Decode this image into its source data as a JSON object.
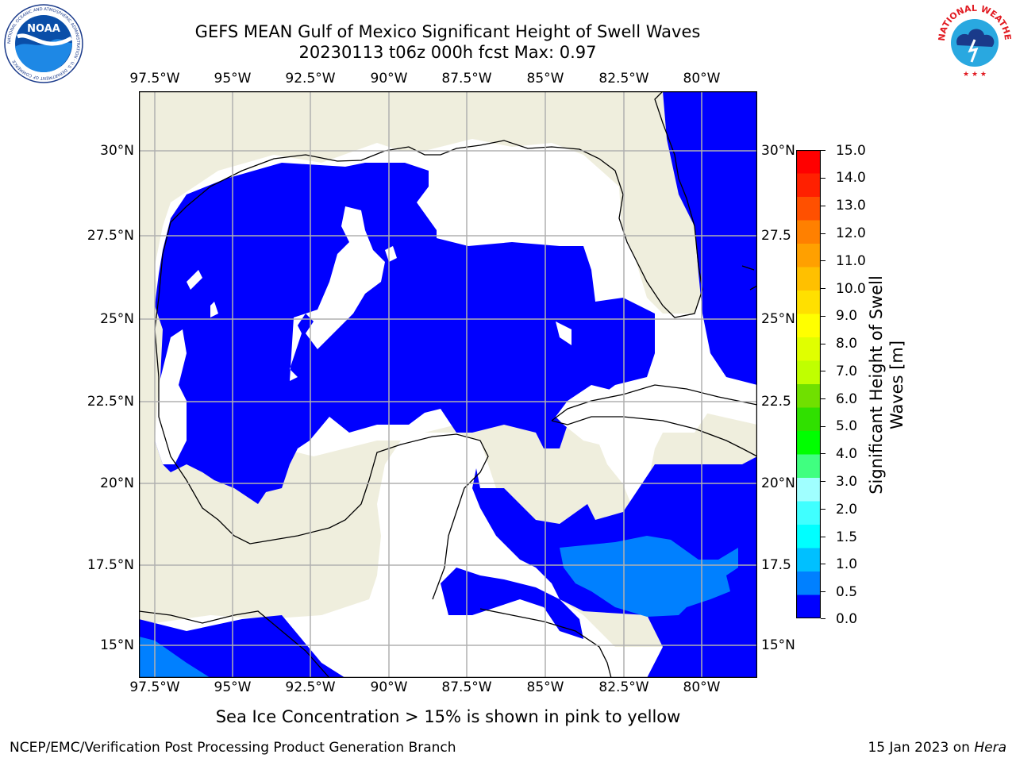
{
  "title": {
    "line1": "GEFS MEAN Gulf of Mexico Significant Height of Swell Waves",
    "line2": "20230113 t06z 000h fcst   Max: 0.97"
  },
  "map": {
    "lon_ticks_top": [
      "97.5°W",
      "95°W",
      "92.5°W",
      "90°W",
      "87.5°W",
      "85°W",
      "82.5°W",
      "80°W"
    ],
    "lon_ticks_bottom": [
      "97.5°W",
      "95°W",
      "92.5°W",
      "90°W",
      "87.5°W",
      "85°W",
      "82.5°W",
      "80°W"
    ],
    "lat_ticks_left": [
      "30°N",
      "27.5°N",
      "25°N",
      "22.5°N",
      "20°N",
      "17.5°N",
      "15°N"
    ],
    "lat_ticks_right": [
      "30°N",
      "27.5",
      "25°N",
      "22.5",
      "20°N",
      "17.5",
      "15°N"
    ],
    "colors": {
      "land": "#efeedd",
      "sea_0_05": "#0000ff",
      "sea_05_10": "#0080ff",
      "no_data": "#ffffff",
      "grid": "#b0b0b0"
    }
  },
  "colorbar": {
    "ticks": [
      "15.0",
      "14.0",
      "13.0",
      "12.0",
      "11.0",
      "10.0",
      "9.0",
      "8.0",
      "7.0",
      "6.0",
      "5.0",
      "4.0",
      "3.0",
      "2.0",
      "1.5",
      "1.0",
      "0.5",
      "0.0"
    ],
    "colors": [
      "#ff0000",
      "#ff2000",
      "#ff5000",
      "#ff8000",
      "#ffa000",
      "#ffc000",
      "#ffe000",
      "#ffff00",
      "#e0ff00",
      "#c0ff00",
      "#70e000",
      "#30e000",
      "#00ff00",
      "#40ff80",
      "#a0ffff",
      "#40ffff",
      "#00ffff",
      "#00c0ff",
      "#0080ff",
      "#0000ff"
    ],
    "label_line1": "Significant Height of Swell",
    "label_line2": "Waves [m]"
  },
  "footnote": "Sea Ice Concentration > 15% is shown in pink to yellow",
  "credit_left": "NCEP/EMC/Verification Post Processing Product Generation Branch",
  "credit_right_date": "15 Jan 2023 on ",
  "credit_right_machine": "Hera",
  "logos": {
    "noaa_text": "NOAA",
    "noaa_ring_text": "NATIONAL OCEANIC AND ATMOSPHERIC ADMINISTRATION · U.S. DEPARTMENT OF COMMERCE",
    "nws_ring_text": "NATIONAL WEATHER SERVICE"
  }
}
